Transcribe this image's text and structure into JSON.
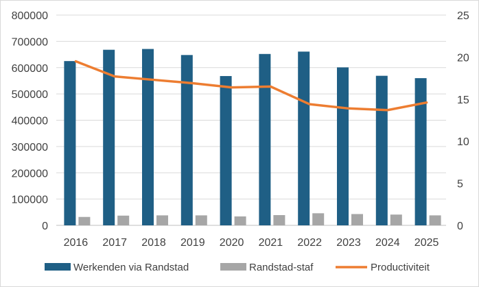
{
  "chart_data": {
    "type": "bar",
    "title": "",
    "categories": [
      "2016",
      "2017",
      "2018",
      "2019",
      "2020",
      "2021",
      "2022",
      "2023",
      "2024",
      "2025"
    ],
    "series": [
      {
        "name": "Werkenden via Randstad",
        "type": "bar",
        "axis": "left",
        "color": "#1f5f85",
        "values": [
          625000,
          668000,
          671000,
          648000,
          568000,
          652000,
          661000,
          601000,
          569000,
          560000
        ]
      },
      {
        "name": "Randstad-staf",
        "type": "bar",
        "axis": "left",
        "color": "#a6a6a6",
        "values": [
          32000,
          37000,
          38000,
          38000,
          34000,
          39000,
          46000,
          43000,
          41000,
          38000
        ]
      },
      {
        "name": "Productiviteit",
        "type": "line",
        "axis": "right",
        "color": "#ed7d31",
        "values": [
          19.5,
          17.7,
          17.3,
          16.9,
          16.4,
          16.5,
          14.4,
          13.9,
          13.7,
          14.6
        ]
      }
    ],
    "y_left": {
      "min": 0,
      "max": 800000,
      "ticks": [
        "0",
        "100000",
        "200000",
        "300000",
        "400000",
        "500000",
        "600000",
        "700000",
        "800000"
      ]
    },
    "y_right": {
      "min": 0,
      "max": 25,
      "ticks": [
        "0",
        "5",
        "10",
        "15",
        "20",
        "25"
      ]
    },
    "grid": true,
    "legend": "bottom"
  }
}
